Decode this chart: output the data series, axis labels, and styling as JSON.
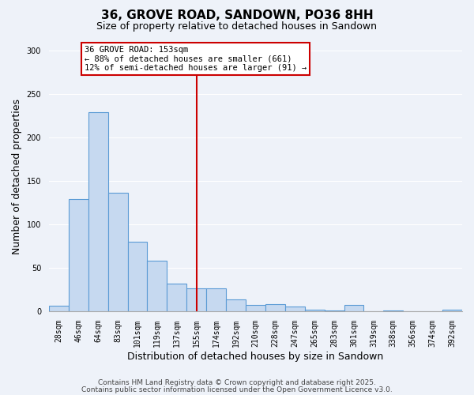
{
  "title": "36, GROVE ROAD, SANDOWN, PO36 8HH",
  "subtitle": "Size of property relative to detached houses in Sandown",
  "xlabel": "Distribution of detached houses by size in Sandown",
  "ylabel": "Number of detached properties",
  "bar_labels": [
    "28sqm",
    "46sqm",
    "64sqm",
    "83sqm",
    "101sqm",
    "119sqm",
    "137sqm",
    "155sqm",
    "174sqm",
    "192sqm",
    "210sqm",
    "228sqm",
    "247sqm",
    "265sqm",
    "283sqm",
    "301sqm",
    "319sqm",
    "338sqm",
    "356sqm",
    "374sqm",
    "392sqm"
  ],
  "bar_values": [
    6,
    129,
    229,
    136,
    80,
    58,
    32,
    26,
    26,
    14,
    7,
    8,
    5,
    2,
    1,
    7,
    0,
    1,
    0,
    0,
    2
  ],
  "bar_color": "#c6d9f0",
  "bar_edge_color": "#5b9bd5",
  "vline_x_idx": 7,
  "vline_color": "#cc0000",
  "annotation_title": "36 GROVE ROAD: 153sqm",
  "annotation_line1": "← 88% of detached houses are smaller (661)",
  "annotation_line2": "12% of semi-detached houses are larger (91) →",
  "annotation_box_facecolor": "#ffffff",
  "annotation_box_edgecolor": "#cc0000",
  "ylim": [
    0,
    310
  ],
  "yticks": [
    0,
    50,
    100,
    150,
    200,
    250,
    300
  ],
  "footer1": "Contains HM Land Registry data © Crown copyright and database right 2025.",
  "footer2": "Contains public sector information licensed under the Open Government Licence v3.0.",
  "bg_color": "#eef2f9",
  "grid_color": "#ffffff",
  "title_fontsize": 11,
  "subtitle_fontsize": 9,
  "ylabel_fontsize": 9,
  "xlabel_fontsize": 9,
  "tick_fontsize": 7,
  "ann_fontsize": 7.5,
  "footer_fontsize": 6.5
}
